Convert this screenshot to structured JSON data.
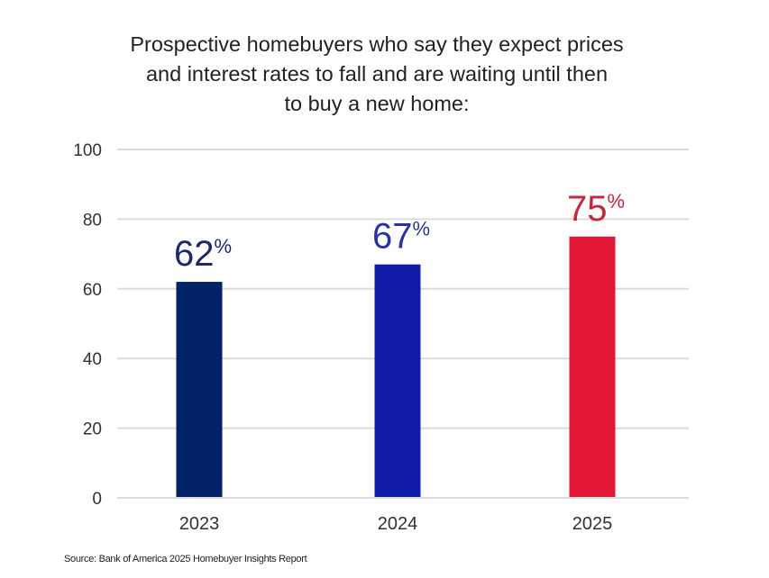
{
  "chart_data": {
    "type": "bar",
    "title_lines": [
      "Prospective homebuyers who say they expect prices",
      "and interest rates to fall and are waiting until then",
      "to buy a new home:"
    ],
    "categories": [
      "2023",
      "2024",
      "2025"
    ],
    "values": [
      62,
      67,
      75
    ],
    "data_labels": [
      "62",
      "67",
      "75"
    ],
    "label_suffix": "%",
    "colors": [
      "#012169",
      "#0F1DA8",
      "#E31837"
    ],
    "label_colors": [
      "#1B2A6E",
      "#2A33A6",
      "#C8283C"
    ],
    "ylim": [
      0,
      100
    ],
    "yticks": [
      "0",
      "20",
      "40",
      "60",
      "80",
      "100"
    ],
    "grid": true,
    "xlabel": "",
    "ylabel": ""
  },
  "source": "Source: Bank of America 2025 Homebuyer Insights Report"
}
